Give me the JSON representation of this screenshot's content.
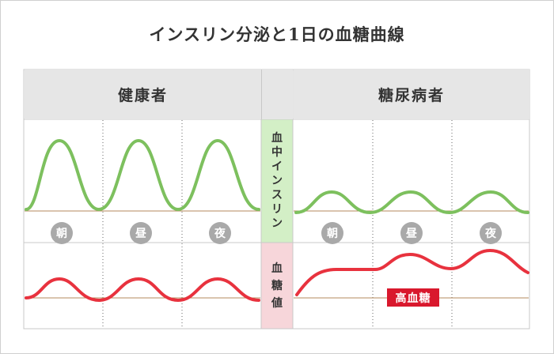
{
  "title": "インスリン分泌と1日の血糖曲線",
  "columns": {
    "healthy": "健康者",
    "diabetic": "糖尿病者"
  },
  "rows": {
    "insulin": [
      "血",
      "中",
      "イ",
      "ン",
      "ス",
      "リ",
      "ン"
    ],
    "glucose": [
      "血",
      "糖",
      "値"
    ]
  },
  "times": [
    "朝",
    "昼",
    "夜"
  ],
  "high_glucose_label": "高血糖",
  "colors": {
    "insulin_curve": "#7dc05e",
    "glucose_curve": "#e8323e",
    "baseline": "#b58a5c",
    "insulin_row_bg": "#d3efc6",
    "glucose_row_bg": "#f7d6da",
    "badge": "#a9a9a9",
    "high_badge": "#d9182d"
  }
}
